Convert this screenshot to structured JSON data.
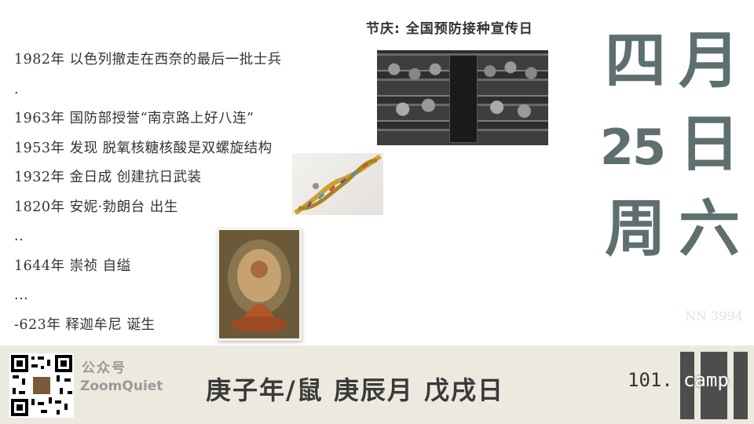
{
  "festival": "节庆:  全国预防接种宣传日",
  "events": [
    "1982年 以色列撤走在西奈的最后一批士兵",
    ".",
    "1963年 国防部授誉“南京路上好八连”",
    "1953年 发现 脱氧核糖核酸是双螺旋结构",
    "1932年 金日成 创建抗日武装",
    "1820年 安妮·勃朗台 出生",
    "..",
    "1644年 崇祯 自缢",
    "...",
    "-623年 释迦牟尼 诞生"
  ],
  "calendar": {
    "month_num": "四",
    "month_char": "月",
    "day_num": "25",
    "day_char": "日",
    "week_char": "周",
    "weekday": "六"
  },
  "serial": "NN 3994",
  "footer": {
    "wechat_label": "公众号",
    "wechat_account": "ZoomQuiet",
    "lunar_date": "庚子年/鼠 庚辰月 戊戌日",
    "brand_prefix": "101.",
    "brand_suffix": "camp"
  },
  "colors": {
    "calendar_text": "#5e6f6f",
    "footer_bg": "#ece9df",
    "brand_block": "#4d4d4d"
  },
  "icons": {
    "qr": "qr-code-icon"
  }
}
